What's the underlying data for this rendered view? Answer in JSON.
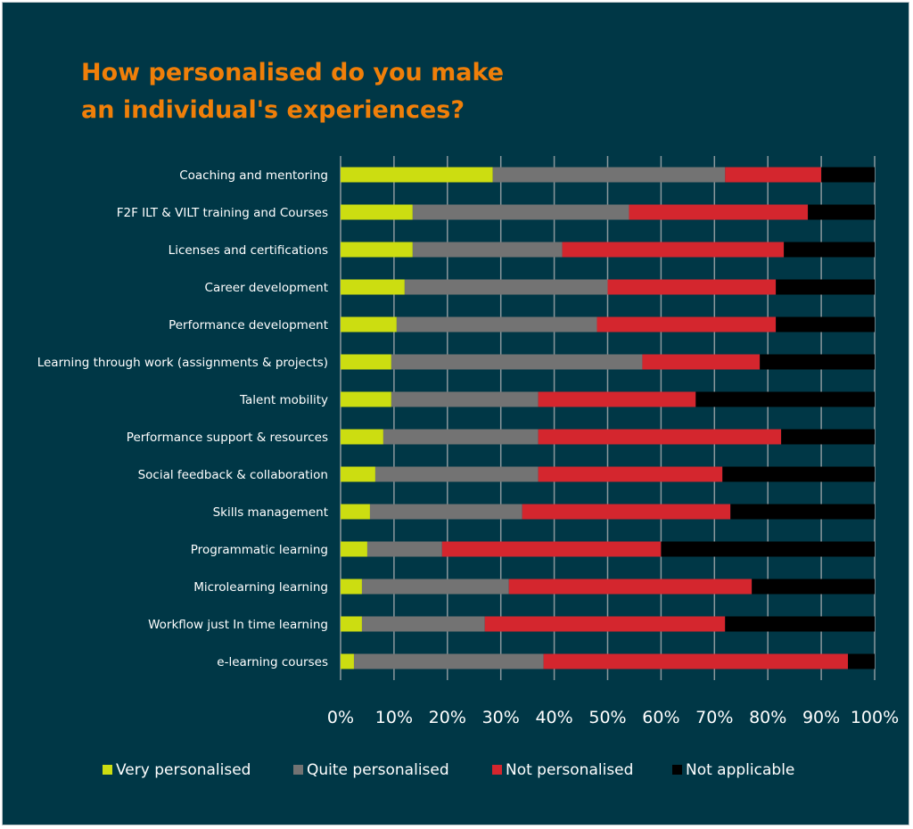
{
  "chart_data": {
    "type": "bar",
    "orientation": "horizontal",
    "stacked": "percent",
    "title": "How personalised do you make an individual's experiences?",
    "categories": [
      "Coaching and mentoring",
      "F2F ILT & VILT training and Courses",
      "Licenses and certifications",
      "Career development",
      "Performance development",
      "Learning through work (assignments & projects)",
      "Talent mobility",
      "Performance support & resources",
      "Social feedback & collaboration",
      "Skills management",
      "Programmatic learning",
      "Microlearning learning",
      "Workflow just In time  learning",
      "e-learning courses"
    ],
    "series": [
      {
        "name": "Very personalised",
        "color": "#ccdd11",
        "values": [
          28.5,
          13.5,
          13.5,
          12,
          10.5,
          9.5,
          9.5,
          8,
          6.5,
          5.5,
          5,
          4,
          4,
          2.5
        ]
      },
      {
        "name": "Quite personalised",
        "color": "#737373",
        "values": [
          43.5,
          40.5,
          28,
          38,
          37.5,
          47,
          27.5,
          29,
          30.5,
          28.5,
          14,
          27.5,
          23,
          35.5
        ]
      },
      {
        "name": "Not personalised",
        "color": "#d4262e",
        "values": [
          18,
          33.5,
          41.5,
          31.5,
          33.5,
          22,
          29.5,
          45.5,
          34.5,
          39,
          41,
          45.5,
          45,
          57
        ]
      },
      {
        "name": "Not applicable",
        "color": "#000000",
        "values": [
          10,
          12.5,
          17,
          18.5,
          18.5,
          21.5,
          33.5,
          17.5,
          28.5,
          27,
          40,
          23,
          28,
          5
        ]
      }
    ],
    "xlim": [
      0,
      100
    ],
    "xticks": [
      "0%",
      "10%",
      "20%",
      "30%",
      "40%",
      "50%",
      "60%",
      "70%",
      "80%",
      "90%",
      "100%"
    ],
    "xlabel": "",
    "ylabel": "",
    "grid": "vertical",
    "legend_position": "bottom"
  },
  "colors": {
    "background": "#003746",
    "title": "#f07f09",
    "text": "#ffffff",
    "grid": "#8b989d"
  }
}
